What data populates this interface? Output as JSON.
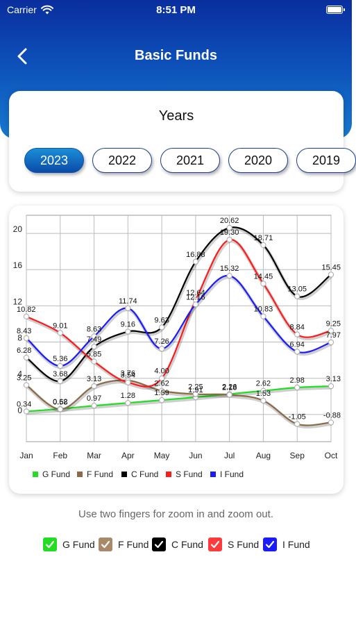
{
  "status_bar": {
    "carrier": "Carrier",
    "time": "8:51 PM"
  },
  "nav": {
    "title": "Basic Funds"
  },
  "years_card": {
    "title": "Years",
    "years": [
      "2023",
      "2022",
      "2021",
      "2020",
      "2019"
    ],
    "selected": "2023"
  },
  "colors": {
    "header_gradient_top": "#0a2e9e",
    "header_gradient_bottom": "#1679cf",
    "g_fund": "#22dd22",
    "f_fund": "#8b6a48",
    "c_fund": "#000000",
    "s_fund": "#ff1a1a",
    "i_fund": "#1a1aff"
  },
  "chart_data": {
    "type": "line",
    "categories": [
      "Jan",
      "Feb",
      "Mar",
      "Apr",
      "May",
      "Jun",
      "Jul",
      "Aug",
      "Sep",
      "Oct"
    ],
    "y_ticks": [
      0,
      4,
      8,
      12,
      16,
      20
    ],
    "ylim": [
      -3,
      22
    ],
    "grid": true,
    "legend_placement": "bottom",
    "series": [
      {
        "name": "G Fund",
        "color": "#22dd22",
        "values": [
          0.34,
          0.62,
          0.97,
          1.28,
          1.59,
          1.91,
          2.26,
          2.62,
          2.98,
          3.13
        ]
      },
      {
        "name": "F Fund",
        "color": "#8b6a48",
        "values": [
          3.25,
          0.58,
          3.13,
          3.76,
          2.62,
          2.25,
          2.18,
          1.53,
          -1.05,
          -0.88
        ]
      },
      {
        "name": "C Fund",
        "color": "#000000",
        "values": [
          6.28,
          3.68,
          7.49,
          9.16,
          9.63,
          16.88,
          20.62,
          18.71,
          13.05,
          15.45
        ]
      },
      {
        "name": "S Fund",
        "color": "#ff1a1a",
        "values": [
          10.82,
          9.01,
          5.85,
          3.54,
          4.0,
          12.64,
          19.3,
          14.45,
          8.84,
          9.25
        ]
      },
      {
        "name": "I Fund",
        "color": "#1a1aff",
        "values": [
          8.43,
          5.36,
          8.63,
          11.74,
          7.26,
          12.16,
          15.32,
          10.83,
          6.94,
          7.97
        ]
      }
    ]
  },
  "hint": "Use two fingers for zoom in and zoom out.",
  "filters": [
    {
      "label": "G Fund",
      "color": "#22dd22",
      "checked": true
    },
    {
      "label": "F Fund",
      "color": "#a88a6a",
      "checked": true
    },
    {
      "label": "C Fund",
      "color": "#000000",
      "checked": true
    },
    {
      "label": "S Fund",
      "color": "#ff3b3b",
      "checked": true
    },
    {
      "label": "I Fund",
      "color": "#1a1aff",
      "checked": true
    }
  ]
}
